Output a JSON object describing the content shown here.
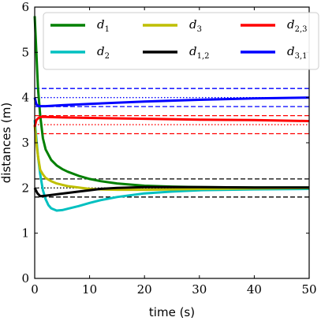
{
  "chart_data": {
    "type": "line",
    "xlabel": "time (s)",
    "ylabel": "distances (m)",
    "xlim": [
      0,
      50
    ],
    "ylim": [
      0,
      6
    ],
    "x_ticks": [
      "0",
      "10",
      "20",
      "30",
      "40",
      "50"
    ],
    "y_ticks": [
      "0",
      "1",
      "2",
      "3",
      "4",
      "5",
      "6"
    ],
    "grid": false,
    "legend_position": "top",
    "series": [
      {
        "name": "d",
        "subscript": "1",
        "color": "#008000",
        "x": [
          0,
          0.3,
          0.6,
          1,
          1.5,
          2,
          3,
          4,
          5,
          6,
          8,
          10,
          12,
          15,
          20,
          25,
          30,
          40,
          50
        ],
        "y": [
          5.8,
          5.0,
          4.2,
          3.6,
          3.1,
          2.85,
          2.62,
          2.5,
          2.42,
          2.36,
          2.27,
          2.2,
          2.15,
          2.1,
          2.05,
          2.03,
          2.02,
          2.01,
          2.01
        ]
      },
      {
        "name": "d",
        "subscript": "2",
        "color": "#00c0c0",
        "x": [
          0,
          0.3,
          0.6,
          1,
          1.5,
          2,
          2.5,
          3,
          4,
          5,
          6,
          8,
          10,
          12,
          15,
          20,
          25,
          30,
          40,
          50
        ],
        "y": [
          3.5,
          3.1,
          2.7,
          2.3,
          1.95,
          1.75,
          1.62,
          1.55,
          1.5,
          1.51,
          1.54,
          1.6,
          1.67,
          1.73,
          1.8,
          1.88,
          1.92,
          1.95,
          1.97,
          1.98
        ]
      },
      {
        "name": "d",
        "subscript": "3",
        "color": "#bfbf00",
        "x": [
          0,
          0.3,
          0.6,
          1,
          1.5,
          2,
          3,
          4,
          5,
          6,
          8,
          10,
          12,
          15,
          20,
          25,
          30,
          40,
          50
        ],
        "y": [
          3.4,
          3.0,
          2.7,
          2.4,
          2.3,
          2.22,
          2.15,
          2.1,
          2.07,
          2.04,
          2.01,
          1.98,
          1.97,
          1.96,
          1.96,
          1.97,
          1.98,
          1.99,
          2.0
        ]
      },
      {
        "name": "d",
        "subscript": "1,2",
        "color": "#000000",
        "x": [
          0,
          0.5,
          1,
          2,
          4,
          6,
          8,
          10,
          12,
          15,
          20,
          25,
          30,
          40,
          50
        ],
        "y": [
          2.0,
          1.88,
          1.82,
          1.83,
          1.86,
          1.89,
          1.92,
          1.95,
          1.98,
          2.0,
          2.02,
          2.02,
          2.02,
          2.01,
          2.01
        ]
      },
      {
        "name": "d",
        "subscript": "2,3",
        "color": "#ff0000",
        "x": [
          0,
          0.3,
          0.7,
          1,
          2,
          5,
          10,
          20,
          30,
          40,
          50
        ],
        "y": [
          3.35,
          3.5,
          3.55,
          3.57,
          3.57,
          3.56,
          3.55,
          3.53,
          3.51,
          3.5,
          3.48
        ]
      },
      {
        "name": "d",
        "subscript": "3,1",
        "color": "#0000ff",
        "x": [
          0,
          0.3,
          0.7,
          1,
          2,
          5,
          10,
          20,
          30,
          40,
          50
        ],
        "y": [
          4.0,
          3.85,
          3.81,
          3.81,
          3.81,
          3.83,
          3.86,
          3.91,
          3.95,
          3.98,
          4.0
        ]
      }
    ],
    "reference_lines": [
      {
        "y": 4.2,
        "color": "#0000ff",
        "style": "dashed"
      },
      {
        "y": 4.0,
        "color": "#0000ff",
        "style": "dotted"
      },
      {
        "y": 3.8,
        "color": "#0000ff",
        "style": "dashed"
      },
      {
        "y": 3.6,
        "color": "#ff0000",
        "style": "dashed"
      },
      {
        "y": 3.4,
        "color": "#ff0000",
        "style": "dotted"
      },
      {
        "y": 3.2,
        "color": "#ff0000",
        "style": "dashed"
      },
      {
        "y": 2.2,
        "color": "#000000",
        "style": "dashed"
      },
      {
        "y": 2.0,
        "color": "#000000",
        "style": "dotted"
      },
      {
        "y": 1.8,
        "color": "#000000",
        "style": "dashed"
      }
    ]
  }
}
